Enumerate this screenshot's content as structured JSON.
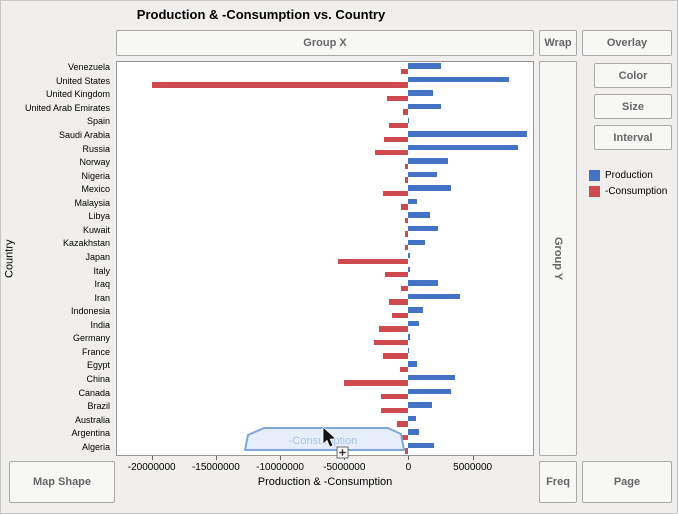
{
  "zones": {
    "group_x": "Group X",
    "wrap": "Wrap",
    "overlay": "Overlay",
    "color": "Color",
    "size": "Size",
    "interval": "Interval",
    "group_y": "Group Y",
    "map_shape": "Map Shape",
    "freq": "Freq",
    "page": "Page"
  },
  "drag": {
    "ghost_label": "-Consumption"
  },
  "chart_data": {
    "type": "bar",
    "orientation": "horizontal",
    "title": "Production & -Consumption vs. Country",
    "xlabel": "Production & -Consumption",
    "ylabel": "Country",
    "xlim": [
      -22700000,
      9700000
    ],
    "xticks": [
      -20000000,
      -15000000,
      -10000000,
      -5000000,
      0,
      5000000
    ],
    "grid": false,
    "legend_position": "right",
    "categories": [
      "Venezuela",
      "United States",
      "United Kingdom",
      "United Arab Emirates",
      "Spain",
      "Saudi Arabia",
      "Russia",
      "Norway",
      "Nigeria",
      "Mexico",
      "Malaysia",
      "Libya",
      "Kuwait",
      "Kazakhstan",
      "Japan",
      "Italy",
      "Iraq",
      "Iran",
      "Indonesia",
      "India",
      "Germany",
      "France",
      "Egypt",
      "China",
      "Canada",
      "Brazil",
      "Australia",
      "Argentina",
      "Algeria"
    ],
    "series": [
      {
        "name": "Production",
        "color": "#4472C4",
        "values": [
          2500000,
          7800000,
          1900000,
          2500000,
          20000,
          9200000,
          8500000,
          3100000,
          2200000,
          3300000,
          700000,
          1700000,
          2300000,
          1300000,
          130000,
          150000,
          2300000,
          4000000,
          1100000,
          800000,
          150000,
          80000,
          700000,
          3600000,
          3300000,
          1800000,
          600000,
          800000,
          2000000
        ]
      },
      {
        "name": "-Consumption",
        "color": "#CE4A4F",
        "values": [
          -600000,
          -20000000,
          -1700000,
          -400000,
          -1500000,
          -1900000,
          -2600000,
          -250000,
          -300000,
          -2000000,
          -550000,
          -300000,
          -300000,
          -250000,
          -5500000,
          -1850000,
          -550000,
          -1550000,
          -1250000,
          -2300000,
          -2650000,
          -1950000,
          -650000,
          -5000000,
          -2100000,
          -2100000,
          -900000,
          -550000,
          -300000
        ]
      }
    ]
  }
}
